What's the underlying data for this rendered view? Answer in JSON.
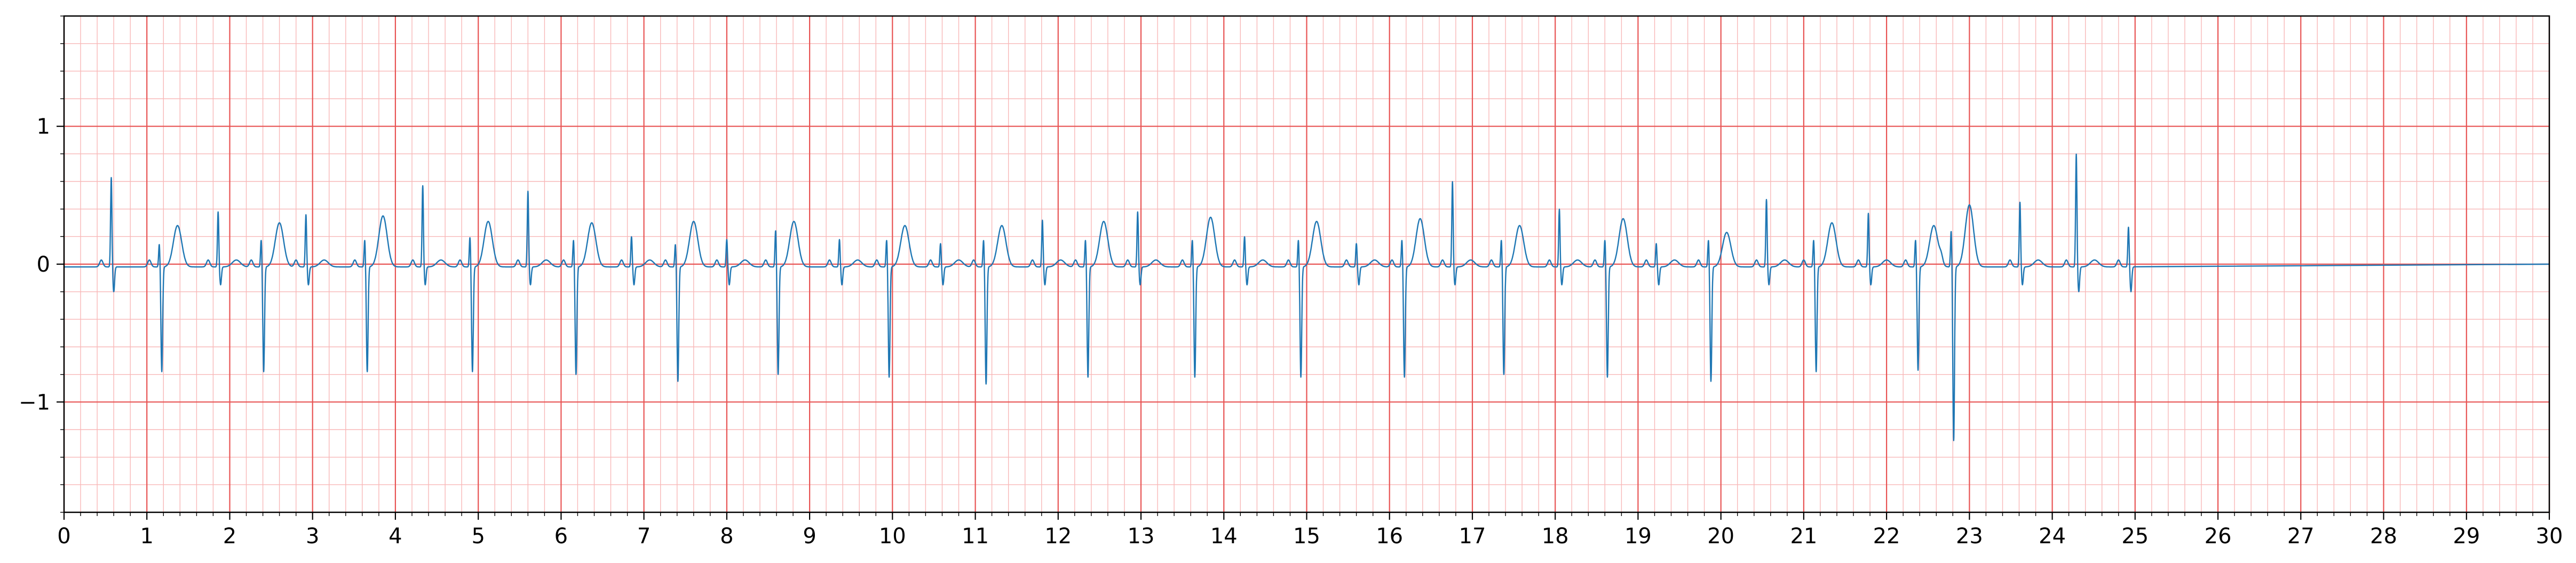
{
  "chart_data": {
    "type": "line",
    "title": "",
    "xlabel": "",
    "ylabel": "",
    "xlim": [
      0,
      30
    ],
    "ylim": [
      -1.8,
      1.8
    ],
    "x_ticks": [
      0,
      1,
      2,
      3,
      4,
      5,
      6,
      7,
      8,
      9,
      10,
      11,
      12,
      13,
      14,
      15,
      16,
      17,
      18,
      19,
      20,
      21,
      22,
      23,
      24,
      25,
      26,
      27,
      28,
      29,
      30
    ],
    "x_tick_labels": [
      "0",
      "1",
      "2",
      "3",
      "4",
      "5",
      "6",
      "7",
      "8",
      "9",
      "10",
      "11",
      "12",
      "13",
      "14",
      "15",
      "16",
      "17",
      "18",
      "19",
      "20",
      "21",
      "22",
      "23",
      "24",
      "25",
      "26",
      "27",
      "28",
      "29",
      "30"
    ],
    "y_ticks": [
      -1,
      0,
      1
    ],
    "y_tick_labels": [
      "−1",
      "0",
      "1"
    ],
    "grid": {
      "major": true,
      "minor": true,
      "major_x_step": 1,
      "minor_x_step": 0.2,
      "major_y_step": 1,
      "minor_y_step": 0.2,
      "major_color": "#e85454",
      "minor_color": "#f8b8b8"
    },
    "series_color": "#1f77b4",
    "beat_times": [
      0.57,
      1.15,
      1.86,
      2.38,
      2.92,
      3.63,
      4.33,
      4.9,
      5.6,
      6.15,
      6.85,
      7.38,
      8.0,
      8.59,
      9.36,
      9.93,
      10.58,
      11.1,
      11.81,
      12.33,
      12.96,
      13.62,
      14.25,
      14.9,
      15.6,
      16.15,
      16.76,
      17.35,
      18.05,
      18.6,
      19.22,
      19.85,
      20.55,
      21.12,
      21.78,
      22.35,
      22.78,
      23.61,
      24.29,
      24.92
    ],
    "beat_r_peaks": [
      0.63,
      0.15,
      0.38,
      0.18,
      0.36,
      0.18,
      0.57,
      0.2,
      0.53,
      0.18,
      0.2,
      0.15,
      0.18,
      0.25,
      0.18,
      0.18,
      0.15,
      0.18,
      0.32,
      0.18,
      0.38,
      0.18,
      0.2,
      0.18,
      0.15,
      0.18,
      0.6,
      0.18,
      0.4,
      0.18,
      0.15,
      0.18,
      0.47,
      0.18,
      0.37,
      0.18,
      0.25,
      0.45,
      0.8,
      0.27
    ],
    "beat_s_troughs": [
      -0.2,
      -0.78,
      -0.15,
      -0.78,
      -0.15,
      -0.78,
      -0.15,
      -0.78,
      -0.15,
      -0.8,
      -0.15,
      -0.85,
      -0.15,
      -0.8,
      -0.15,
      -0.82,
      -0.15,
      -0.87,
      -0.15,
      -0.82,
      -0.15,
      -0.82,
      -0.15,
      -0.82,
      -0.15,
      -0.82,
      -0.15,
      -0.8,
      -0.15,
      -0.82,
      -0.15,
      -0.85,
      -0.15,
      -0.78,
      -0.15,
      -0.77,
      -1.28,
      -0.15,
      -0.2,
      -0.2
    ],
    "beat_t_waves": [
      0.0,
      0.3,
      0.05,
      0.32,
      0.05,
      0.37,
      0.05,
      0.33,
      0.05,
      0.32,
      0.05,
      0.33,
      0.05,
      0.33,
      0.05,
      0.3,
      0.05,
      0.3,
      0.05,
      0.33,
      0.05,
      0.36,
      0.05,
      0.33,
      0.05,
      0.35,
      0.05,
      0.3,
      0.05,
      0.35,
      0.05,
      0.25,
      0.05,
      0.32,
      0.05,
      0.3,
      0.45,
      0.05,
      0.05,
      0.05
    ],
    "signal_end": 25.0,
    "flat_value_after_end": 0.0
  }
}
